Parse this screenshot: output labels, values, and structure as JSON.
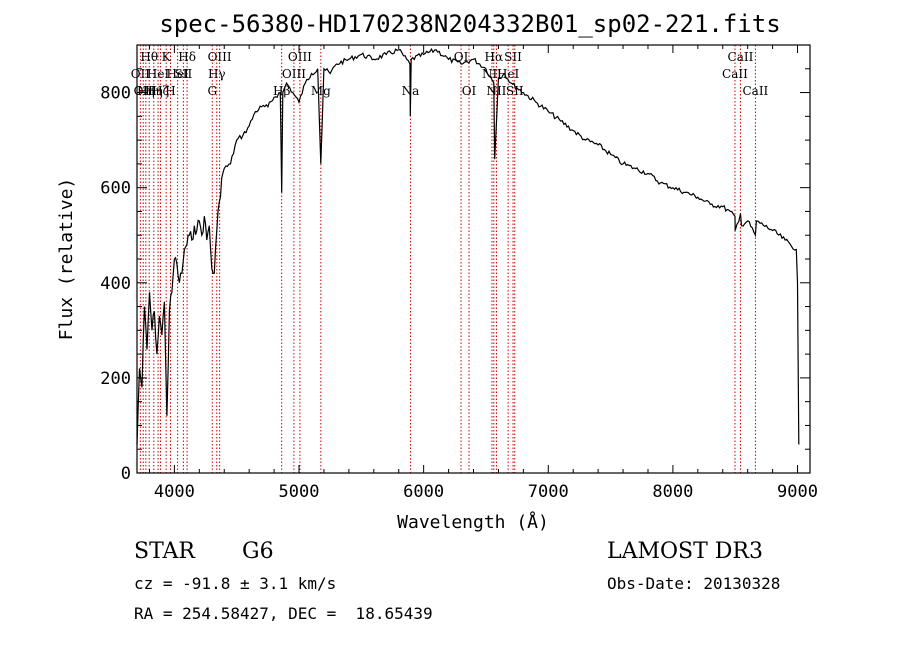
{
  "chart_data": {
    "type": "line",
    "title": "spec-56380-HD170238N204332B01_sp02-221.fits",
    "xlabel": "Wavelength (Å)",
    "ylabel": "Flux (relative)",
    "xlim": [
      3700,
      9100
    ],
    "ylim": [
      0,
      900
    ],
    "xticks": [
      4000,
      5000,
      6000,
      7000,
      8000,
      9000
    ],
    "yticks": [
      0,
      200,
      400,
      600,
      800
    ],
    "xtick_labels": [
      "4000",
      "5000",
      "6000",
      "7000",
      "8000",
      "9000"
    ],
    "ytick_labels": [
      "0",
      "200",
      "400",
      "600",
      "800"
    ],
    "series": [
      {
        "name": "spectrum",
        "x": [
          3700,
          3720,
          3740,
          3760,
          3780,
          3800,
          3820,
          3840,
          3860,
          3880,
          3900,
          3920,
          3940,
          3960,
          3980,
          4000,
          4020,
          4040,
          4060,
          4080,
          4100,
          4120,
          4140,
          4160,
          4180,
          4200,
          4220,
          4240,
          4260,
          4280,
          4300,
          4320,
          4340,
          4360,
          4380,
          4400,
          4450,
          4500,
          4550,
          4600,
          4650,
          4700,
          4750,
          4800,
          4850,
          4861,
          4870,
          4900,
          4950,
          5000,
          5050,
          5100,
          5150,
          5175,
          5200,
          5250,
          5300,
          5400,
          5500,
          5600,
          5700,
          5800,
          5890,
          5893,
          5900,
          6000,
          6100,
          6200,
          6300,
          6400,
          6500,
          6563,
          6570,
          6600,
          6650,
          6700,
          6800,
          6900,
          7000,
          7100,
          7200,
          7300,
          7400,
          7500,
          7600,
          7700,
          7800,
          7900,
          8000,
          8100,
          8200,
          8300,
          8400,
          8498,
          8500,
          8542,
          8550,
          8600,
          8662,
          8670,
          8700,
          8800,
          8900,
          8990,
          9000,
          9010
        ],
        "y": [
          60,
          220,
          180,
          350,
          260,
          380,
          300,
          340,
          250,
          330,
          290,
          360,
          120,
          340,
          380,
          450,
          440,
          400,
          420,
          470,
          480,
          500,
          490,
          520,
          510,
          530,
          500,
          540,
          490,
          520,
          430,
          420,
          510,
          570,
          620,
          640,
          650,
          700,
          710,
          730,
          760,
          770,
          770,
          790,
          800,
          590,
          800,
          820,
          800,
          780,
          820,
          840,
          850,
          650,
          850,
          840,
          860,
          870,
          880,
          870,
          880,
          890,
          860,
          750,
          870,
          880,
          890,
          870,
          860,
          870,
          850,
          820,
          660,
          830,
          840,
          820,
          800,
          780,
          760,
          740,
          720,
          700,
          690,
          670,
          650,
          640,
          630,
          610,
          600,
          590,
          580,
          565,
          560,
          540,
          510,
          545,
          520,
          530,
          500,
          530,
          525,
          510,
          490,
          470,
          400,
          60
        ]
      }
    ],
    "lines": [
      {
        "wave": 3727,
        "label": "OII",
        "row": 1
      },
      {
        "wave": 3750,
        "label": "OII",
        "row": 2
      },
      {
        "wave": 3771,
        "label": "Hη",
        "row": 2
      },
      {
        "wave": 3798,
        "label": "Hθ",
        "row": 0
      },
      {
        "wave": 3835,
        "label": "Hη",
        "row": 2
      },
      {
        "wave": 3869,
        "label": "HeI",
        "row": 1
      },
      {
        "wave": 3889,
        "label": "Hζ",
        "row": 2
      },
      {
        "wave": 3934,
        "label": "K",
        "row": 0
      },
      {
        "wave": 3969,
        "label": "H",
        "row": 2
      },
      {
        "wave": 4026,
        "label": "HeI",
        "row": 1
      },
      {
        "wave": 4072,
        "label": "SII",
        "row": 1
      },
      {
        "wave": 4102,
        "label": "Hδ",
        "row": 0
      },
      {
        "wave": 4304,
        "label": "G",
        "row": 2
      },
      {
        "wave": 4340,
        "label": "Hγ",
        "row": 1
      },
      {
        "wave": 4363,
        "label": "OIII",
        "row": 0
      },
      {
        "wave": 4861,
        "label": "Hβ",
        "row": 2
      },
      {
        "wave": 4959,
        "label": "OIII",
        "row": 1
      },
      {
        "wave": 5007,
        "label": "OIII",
        "row": 0
      },
      {
        "wave": 5175,
        "label": "Mg",
        "row": 2
      },
      {
        "wave": 5894,
        "label": "Na",
        "row": 2
      },
      {
        "wave": 6300,
        "label": "OI",
        "row": 0
      },
      {
        "wave": 6364,
        "label": "OI",
        "row": 2
      },
      {
        "wave": 6548,
        "label": "NII",
        "row": 1
      },
      {
        "wave": 6563,
        "label": "Hα",
        "row": 0
      },
      {
        "wave": 6584,
        "label": "NII",
        "row": 2
      },
      {
        "wave": 6678,
        "label": "HeI",
        "row": 1
      },
      {
        "wave": 6717,
        "label": "SII",
        "row": 0
      },
      {
        "wave": 6731,
        "label": "SII",
        "row": 2
      },
      {
        "wave": 8498,
        "label": "CaII",
        "row": 1
      },
      {
        "wave": 8542,
        "label": "CaII",
        "row": 0
      },
      {
        "wave": 8662,
        "label": "CaII",
        "row": 2
      }
    ]
  },
  "info": {
    "class": "STAR",
    "subclass": "G6",
    "survey": "LAMOST DR3",
    "cz": "cz = -91.8 ± 3.1 km/s",
    "obs_date": "Obs-Date: 20130328",
    "radec": "RA = 254.58427, DEC =  18.65439"
  },
  "colors": {
    "line_marker": "#cc0000",
    "spectrum": "#000000"
  }
}
